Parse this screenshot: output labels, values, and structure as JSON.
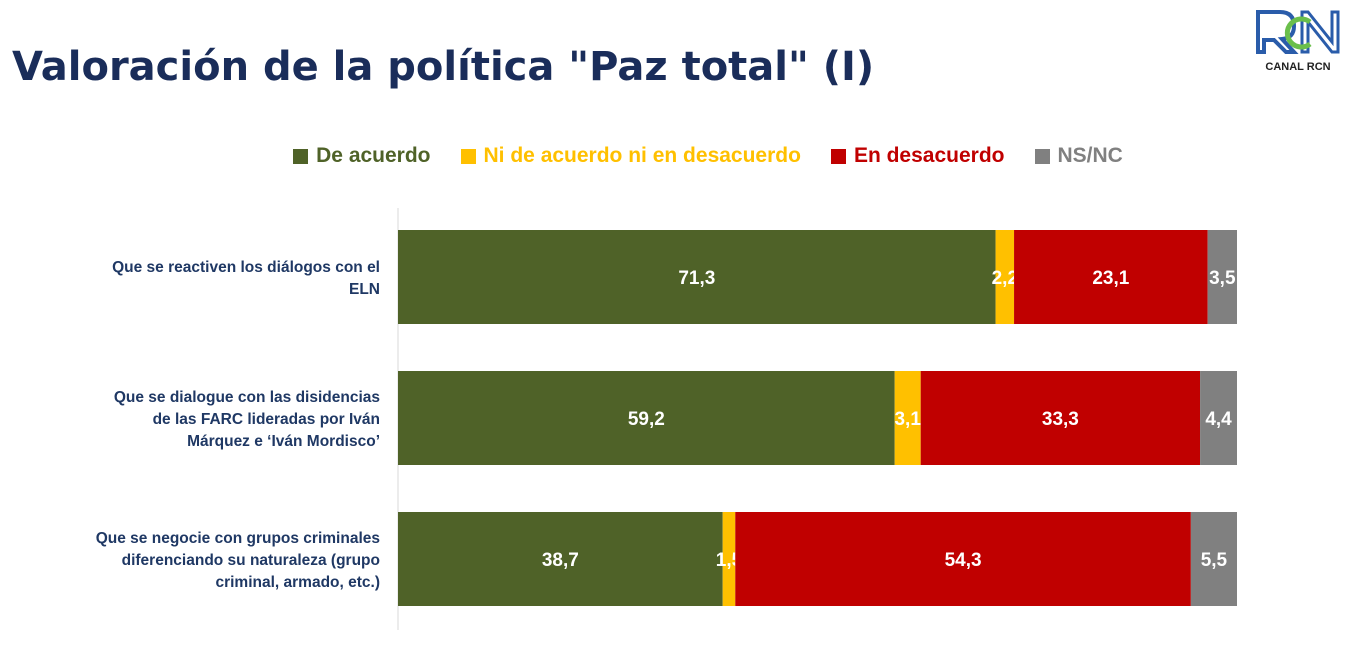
{
  "title": "Valoración de la política \"Paz total\" (I)",
  "logo": {
    "text": "CANAL RCN",
    "mark": "RCN"
  },
  "chart_data": {
    "type": "bar",
    "orientation": "horizontal",
    "stacked": true,
    "xlim": [
      0,
      100
    ],
    "legend_position": "top",
    "grid": false,
    "categories": [
      "Que se reactiven los diálogos con el ELN",
      "Que se dialogue con las disidencias de las FARC lideradas por Iván Márquez e ‘Iván Mordisco’",
      "Que se negocie con grupos criminales diferenciando su naturaleza (grupo criminal, armado, etc.)"
    ],
    "category_lines": [
      [
        "Que se reactiven los diálogos con el",
        "ELN"
      ],
      [
        "Que se dialogue con las disidencias",
        "de las FARC lideradas por Iván",
        "Márquez e ‘Iván Mordisco’"
      ],
      [
        "Que se negocie con grupos criminales",
        "diferenciando su naturaleza (grupo",
        "criminal, armado, etc.)"
      ]
    ],
    "series": [
      {
        "name": "De acuerdo",
        "color": "#4f6228",
        "values": [
          71.3,
          59.2,
          38.7
        ]
      },
      {
        "name": "Ni de acuerdo ni en desacuerdo",
        "color": "#ffc000",
        "values": [
          2.2,
          3.1,
          1.5
        ]
      },
      {
        "name": "En desacuerdo",
        "color": "#c00000",
        "values": [
          23.1,
          33.3,
          54.3
        ]
      },
      {
        "name": "NS/NC",
        "color": "#808080",
        "values": [
          3.5,
          4.4,
          5.5
        ]
      }
    ],
    "label_color": "#1f3864"
  }
}
